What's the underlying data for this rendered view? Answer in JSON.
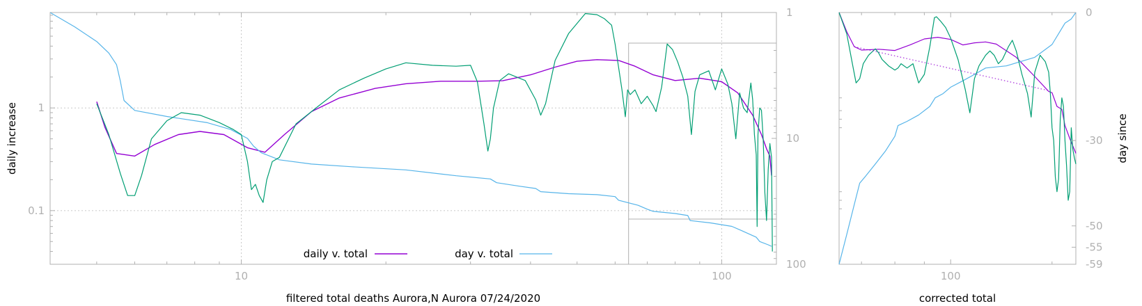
{
  "colors": {
    "daily": "#9400d3",
    "day": "#56b4e9",
    "raw": "#009e73",
    "axis": "#b0b0b0",
    "grid": "#c8c8c8",
    "tick_text": "#b0b0b0",
    "label_text": "#000000"
  },
  "chart_data": [
    {
      "id": "main",
      "type": "line",
      "xscale": "log",
      "yscale": "log",
      "xlim": [
        4,
        130
      ],
      "ylim": [
        0.03,
        8.5
      ],
      "y2lim": [
        1,
        100
      ],
      "y2scale": "log-reversed",
      "xlabel": "filtered total deaths Aurora,N Aurora 07/24/2020",
      "ylabel": "daily increase",
      "xticks": [
        10,
        100
      ],
      "xtick_labels": [
        "10",
        "100"
      ],
      "yticks": [
        1,
        0.1
      ],
      "ytick_labels": [
        "1",
        "0.1"
      ],
      "y2ticks": [
        1,
        10,
        100
      ],
      "y2tick_labels": [
        "1",
        "10",
        "100"
      ],
      "grid": true,
      "legend": {
        "position": "bottom-center",
        "entries": [
          {
            "label": "daily v. total",
            "series": "daily"
          },
          {
            "label": "day v. total",
            "series": "day"
          }
        ]
      },
      "series": [
        {
          "name": "daily v. total",
          "key": "daily",
          "axis": "y",
          "x": [
            5.0,
            5.2,
            5.5,
            6.0,
            6.6,
            7.4,
            8.2,
            9.2,
            10.3,
            11.2,
            12.3,
            14.0,
            16.0,
            19.0,
            22.0,
            26.0,
            31.0,
            35.0,
            40.0,
            45.0,
            50.0,
            55.0,
            61.0,
            66.0,
            72.0,
            80.0,
            90.0,
            100.0,
            108.0,
            116.0,
            121.0,
            124.0,
            126.0,
            127.0
          ],
          "y": [
            1.15,
            0.65,
            0.36,
            0.34,
            0.44,
            0.55,
            0.59,
            0.55,
            0.41,
            0.37,
            0.55,
            0.92,
            1.25,
            1.55,
            1.72,
            1.82,
            1.82,
            1.84,
            2.1,
            2.5,
            2.85,
            2.95,
            2.9,
            2.55,
            2.1,
            1.85,
            1.95,
            1.8,
            1.4,
            0.85,
            0.55,
            0.4,
            0.34,
            0.22
          ]
        },
        {
          "name": "day v. total",
          "key": "day",
          "axis": "y2",
          "x": [
            4.0,
            4.5,
            5.0,
            5.3,
            5.5,
            5.6,
            5.7,
            6.0,
            7.0,
            8.5,
            9.5,
            10.3,
            10.6,
            11.0,
            12.0,
            14.0,
            17.0,
            22.0,
            28.0,
            33.0,
            34.0,
            38.0,
            41.0,
            42.0,
            48.0,
            55.0,
            60.0,
            61.0,
            67.0,
            70.0,
            72.0,
            80.0,
            85.0,
            86.0,
            95.0,
            100.0,
            105.0,
            110.0,
            118.0,
            120.0,
            125.0,
            127.0
          ],
          "y": [
            1.0,
            1.3,
            1.7,
            2.1,
            2.6,
            3.5,
            5.0,
            6.0,
            6.7,
            7.5,
            8.5,
            10.0,
            11.5,
            13.0,
            14.8,
            16.0,
            16.8,
            17.8,
            19.8,
            21.0,
            22.5,
            24.0,
            25.0,
            26.5,
            27.5,
            28.0,
            29.0,
            31.0,
            34.0,
            36.5,
            38.0,
            39.5,
            41.0,
            45.0,
            47.0,
            48.5,
            50.0,
            54.0,
            61.0,
            66.0,
            70.0,
            72.0
          ]
        },
        {
          "name": "",
          "key": "raw",
          "axis": "y",
          "x": [
            5.0,
            5.3,
            5.6,
            5.8,
            6.0,
            6.2,
            6.5,
            7.0,
            7.5,
            8.2,
            9.0,
            9.6,
            10.0,
            10.3,
            10.5,
            10.7,
            10.9,
            11.1,
            11.3,
            11.6,
            12.0,
            13.0,
            14.5,
            16.0,
            18.0,
            20.0,
            22.0,
            25.0,
            28.0,
            30.0,
            31.0,
            32.0,
            32.6,
            33.0,
            33.5,
            34.5,
            36.0,
            39.0,
            41.0,
            42.0,
            43.0,
            45.0,
            48.0,
            52.0,
            55.0,
            57.0,
            59.0,
            60.0,
            62.0,
            63.0,
            63.7,
            64.5,
            66.0,
            68.0,
            70.0,
            72.0,
            73.0,
            75.0,
            77.0,
            79.0,
            81.0,
            83.0,
            85.0,
            86.5,
            88.0,
            90.0,
            94.0,
            97.0,
            100.0,
            103.0,
            105.0,
            107.0,
            109.0,
            111.0,
            113.0,
            115.0,
            116.0,
            117.0,
            118.0,
            118.5,
            119.0,
            120.0,
            121.0,
            122.0,
            123.0,
            124.0,
            125.0,
            126.0,
            127.0,
            127.5
          ],
          "y": [
            1.1,
            0.55,
            0.23,
            0.14,
            0.14,
            0.22,
            0.5,
            0.75,
            0.9,
            0.85,
            0.72,
            0.62,
            0.55,
            0.3,
            0.16,
            0.18,
            0.14,
            0.12,
            0.2,
            0.3,
            0.33,
            0.7,
            1.05,
            1.5,
            1.95,
            2.4,
            2.75,
            2.6,
            2.55,
            2.6,
            1.8,
            0.7,
            0.38,
            0.5,
            1.0,
            1.85,
            2.15,
            1.85,
            1.2,
            0.85,
            1.1,
            2.9,
            5.3,
            8.3,
            8.1,
            7.4,
            6.4,
            4.2,
            1.5,
            0.82,
            1.5,
            1.35,
            1.5,
            1.1,
            1.3,
            1.05,
            0.92,
            1.6,
            4.2,
            3.7,
            2.8,
            2.0,
            1.3,
            0.55,
            1.45,
            2.1,
            2.3,
            1.5,
            2.4,
            1.7,
            1.1,
            0.5,
            1.4,
            1.0,
            0.9,
            1.75,
            1.2,
            0.55,
            0.35,
            0.07,
            0.55,
            1.0,
            0.95,
            0.5,
            0.15,
            0.08,
            0.25,
            0.45,
            0.33,
            0.04
          ]
        }
      ]
    },
    {
      "id": "side",
      "type": "line",
      "xscale": "log",
      "xlim": [
        64,
        165
      ],
      "ylim": [
        -59,
        0
      ],
      "xlabel": "corrected total",
      "ylabel": "day since",
      "xticks": [
        100
      ],
      "xtick_labels": [
        "100"
      ],
      "y2ticks": [
        0,
        -30,
        -50,
        -55,
        -59
      ],
      "y2tick_labels": [
        "0",
        "-30",
        "-50",
        "-55",
        "-59"
      ],
      "grid": false,
      "series": [
        {
          "name": "",
          "key": "daily",
          "x": [
            64.0,
            66.0,
            68.0,
            70.0,
            75.0,
            80.0,
            85.0,
            90.0,
            95.0,
            100.0,
            105.0,
            110.0,
            115.0,
            120.0,
            130.0,
            140.0,
            148.0,
            150.0,
            153.0,
            156.0,
            158.0,
            161.0,
            165.0
          ],
          "y": [
            0,
            -4.5,
            -8.0,
            -8.8,
            -8.6,
            -8.9,
            -7.6,
            -6.2,
            -5.8,
            -6.3,
            -7.6,
            -7.1,
            -6.9,
            -7.4,
            -10.5,
            -15.0,
            -18.5,
            -18.8,
            -22.0,
            -22.7,
            -26.5,
            -29.5,
            -33.0
          ]
        },
        {
          "name": "",
          "key": "day",
          "x": [
            64.0,
            66.0,
            68.0,
            69.5,
            71.0,
            74.0,
            77.0,
            80.0,
            81.0,
            84.0,
            88.0,
            92.0,
            94.0,
            97.0,
            100.0,
            105.0,
            110.0,
            115.0,
            125.0,
            140.0,
            150.0,
            158.0,
            160.0,
            162.0,
            165.0
          ],
          "y": [
            -59,
            -52,
            -45,
            -40,
            -38.5,
            -35.5,
            -32.5,
            -29.0,
            -26.5,
            -25.5,
            -24.0,
            -22.0,
            -20.0,
            -19.0,
            -17.5,
            -16.0,
            -14.5,
            -13.0,
            -12.5,
            -10.5,
            -7.5,
            -2.5,
            -2.0,
            -1.5,
            0
          ]
        },
        {
          "name": "",
          "key": "raw",
          "x": [
            64.0,
            66.0,
            67.5,
            68.5,
            69.5,
            70.5,
            72.0,
            74.0,
            75.0,
            76.0,
            78.0,
            80.0,
            81.0,
            82.0,
            84.0,
            86.0,
            88.0,
            90.0,
            92.0,
            93.0,
            93.7,
            94.5,
            96.0,
            98.0,
            100.0,
            103.0,
            106.0,
            108.0,
            110.0,
            112.0,
            115.0,
            117.0,
            119.0,
            121.0,
            123.0,
            126.0,
            128.0,
            130.0,
            133.0,
            136.0,
            138.0,
            140.0,
            143.0,
            146.0,
            148.0,
            149.0,
            150.0,
            151.0,
            152.0,
            153.0,
            154.0,
            155.0,
            156.0,
            157.0,
            158.0,
            159.0,
            160.0,
            161.0,
            162.0,
            163.0,
            164.0,
            165.0
          ],
          "y": [
            0,
            -5.0,
            -12.0,
            -16.5,
            -15.5,
            -12.0,
            -10.0,
            -8.5,
            -9.5,
            -11.0,
            -12.5,
            -13.5,
            -13.0,
            -12.0,
            -13.0,
            -12.0,
            -16.5,
            -14.5,
            -8.0,
            -4.0,
            -1.2,
            -1.0,
            -2.0,
            -3.5,
            -6.0,
            -11.0,
            -18.0,
            -23.5,
            -15.5,
            -12.5,
            -10.0,
            -9.0,
            -10.0,
            -12.0,
            -11.0,
            -8.0,
            -6.5,
            -9.0,
            -14.5,
            -19.0,
            -24.5,
            -14.0,
            -10.0,
            -11.5,
            -14.0,
            -19.0,
            -27.0,
            -30.0,
            -38.5,
            -42.0,
            -39.0,
            -25.0,
            -20.0,
            -22.0,
            -30.0,
            -36.0,
            -44.0,
            -42.0,
            -27.0,
            -32.0,
            -34.0,
            -35.5
          ]
        },
        {
          "name": "",
          "key": "daily_fit",
          "dashed": true,
          "x": [
            68.0,
            148.0
          ],
          "y": [
            -8.0,
            -18.3
          ]
        }
      ]
    }
  ]
}
